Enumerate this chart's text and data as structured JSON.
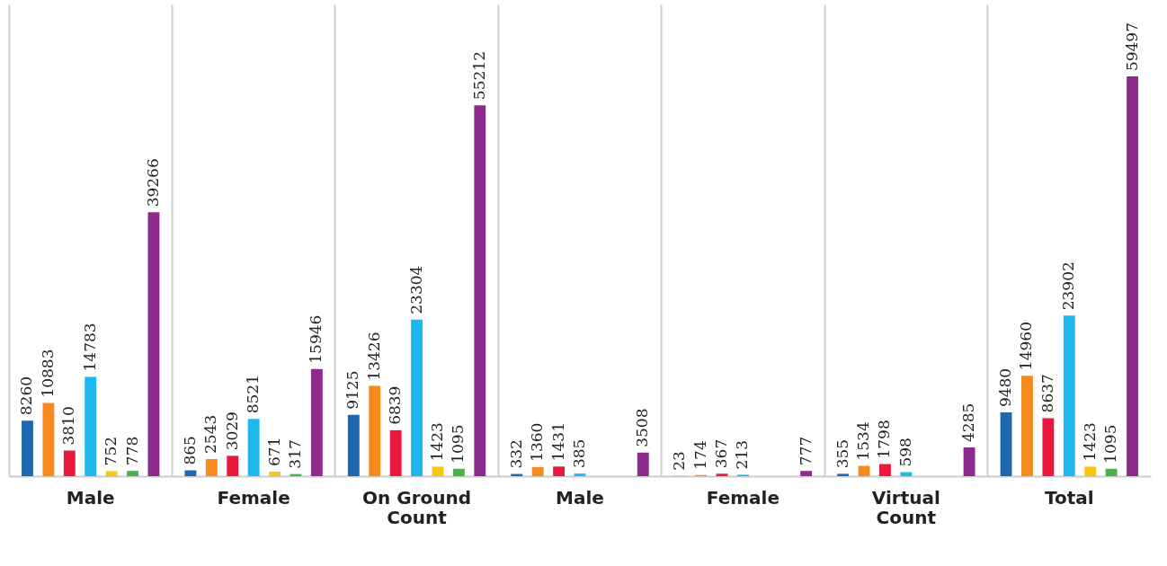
{
  "chart_data": {
    "type": "bar",
    "categories": [
      "Male",
      "Female",
      "On Ground Count",
      "Male",
      "Female",
      "Virtual Count",
      "Total"
    ],
    "series": [
      {
        "color": "#1f68b0",
        "values": [
          8260,
          865,
          9125,
          332,
          23,
          355,
          9480
        ]
      },
      {
        "color": "#f58a1f",
        "values": [
          10883,
          2543,
          13426,
          1360,
          174,
          1534,
          14960
        ]
      },
      {
        "color": "#e8193c",
        "values": [
          3810,
          3029,
          6839,
          1431,
          367,
          1798,
          8637
        ]
      },
      {
        "color": "#1cb8ef",
        "values": [
          14783,
          8521,
          23304,
          385,
          213,
          598,
          23902
        ]
      },
      {
        "color": "#f9c80e",
        "values": [
          752,
          671,
          1423,
          null,
          null,
          null,
          1423
        ]
      },
      {
        "color": "#4caf50",
        "values": [
          778,
          317,
          1095,
          null,
          null,
          null,
          1095
        ]
      },
      {
        "color": "#8e2a8e",
        "values": [
          39266,
          15946,
          55212,
          3508,
          777,
          4285,
          59497
        ]
      }
    ],
    "data_labels": true,
    "grid": "x",
    "legend": false
  }
}
